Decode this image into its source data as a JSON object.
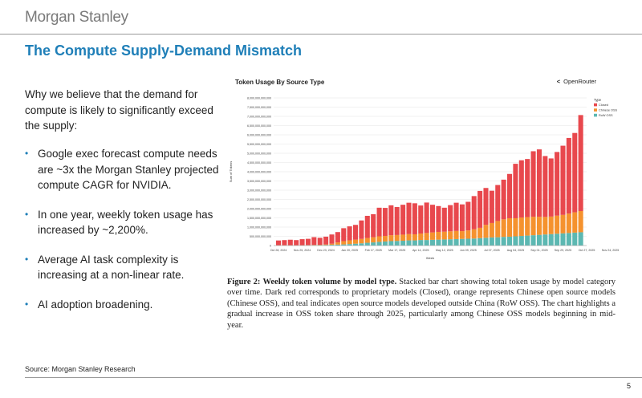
{
  "header": {
    "logo": "Morgan Stanley"
  },
  "slide": {
    "title": "The Compute Supply-Demand Mismatch",
    "intro": "Why we believe that the demand for compute is likely to significantly exceed the supply:",
    "bullets": [
      "Google exec forecast compute needs are ~3x the Morgan Stanley projected compute CAGR for NVIDIA.",
      "In one year, weekly token usage has increased by ~2,200%.",
      "Average AI task complexity is increasing at a non-linear rate.",
      "AI adoption broadening."
    ],
    "bullet_marker": "•",
    "source": "Source: Morgan Stanley Research",
    "page_number": "5"
  },
  "figure": {
    "brand": "OpenRouter",
    "brand_icon": "openrouter-logo-icon",
    "caption": {
      "label": "Figure 2:",
      "bold": "Weekly token volume by model type.",
      "text": "Stacked bar chart showing total token usage by model category over time. Dark red corresponds to proprietary models (Closed), orange represents Chinese open source models (Chinese OSS), and teal indicates open source models developed outside China (RoW OSS). The chart highlights a gradual increase in OSS token share through 2025, particularly among Chinese OSS models beginning in mid-year."
    }
  },
  "chart_data": {
    "type": "bar",
    "stacked": true,
    "title": "Token Usage By Source Type",
    "xlabel": "Week",
    "ylabel": "Sum of Tokens",
    "ylim": [
      0,
      8000000000000
    ],
    "yticks": [
      "0",
      "500,000,000,000",
      "1,000,000,000,000",
      "1,500,000,000,000",
      "2,000,000,000,000",
      "2,500,000,000,000",
      "3,000,000,000,000",
      "3,500,000,000,000",
      "4,000,000,000,000",
      "4,500,000,000,000",
      "5,000,000,000,000",
      "5,500,000,000,000",
      "6,000,000,000,000",
      "6,500,000,000,000",
      "7,000,000,000,000",
      "7,500,000,000,000",
      "8,000,000,000,000"
    ],
    "xticks": [
      "Oct 28, 2024",
      "Nov 25, 2024",
      "Dec 23, 2024",
      "Jan 20, 2025",
      "Feb 17, 2025",
      "Mar 17, 2025",
      "Apr 14, 2025",
      "May 12, 2025",
      "Jun 09, 2025",
      "Jul 07, 2025",
      "Aug 04, 2025",
      "Sep 01, 2025",
      "Sep 29, 2025",
      "Oct 27, 2025",
      "Nov 24, 2025"
    ],
    "legend_title": "Type",
    "legend_position": "top-right",
    "grid": true,
    "series": [
      {
        "name": "Closed",
        "color": "#e8484d",
        "values": [
          260,
          280,
          300,
          280,
          330,
          340,
          420,
          380,
          420,
          500,
          560,
          700,
          760,
          800,
          1000,
          1200,
          1250,
          1550,
          1520,
          1620,
          1520,
          1620,
          1700,
          1680,
          1520,
          1650,
          1500,
          1400,
          1300,
          1420,
          1530,
          1450,
          1550,
          1800,
          2000,
          2000,
          1750,
          1950,
          2150,
          2400,
          2950,
          3100,
          3150,
          3550,
          3650,
          3300,
          3150,
          3450,
          3750,
          4100,
          4300,
          5200
        ]
      },
      {
        "name": "Chinese OSS",
        "color": "#f5922e",
        "values": [
          10,
          10,
          10,
          10,
          10,
          15,
          20,
          20,
          30,
          60,
          120,
          180,
          200,
          220,
          240,
          260,
          280,
          300,
          300,
          320,
          320,
          330,
          340,
          330,
          350,
          380,
          400,
          420,
          420,
          430,
          440,
          420,
          450,
          500,
          560,
          700,
          780,
          880,
          950,
          1000,
          980,
          1000,
          1000,
          1000,
          980,
          950,
          950,
          980,
          1000,
          1050,
          1100,
          1150
        ]
      },
      {
        "name": "RoW OSS",
        "color": "#5cb8b2",
        "values": [
          5,
          5,
          5,
          5,
          5,
          10,
          15,
          20,
          30,
          40,
          50,
          60,
          80,
          100,
          120,
          150,
          170,
          200,
          220,
          240,
          250,
          260,
          280,
          280,
          300,
          300,
          310,
          320,
          330,
          340,
          350,
          360,
          370,
          380,
          400,
          420,
          440,
          450,
          470,
          480,
          500,
          520,
          540,
          560,
          580,
          600,
          620,
          640,
          660,
          680,
          700,
          720
        ]
      }
    ],
    "value_unit_note": "values in billions of tokens"
  }
}
